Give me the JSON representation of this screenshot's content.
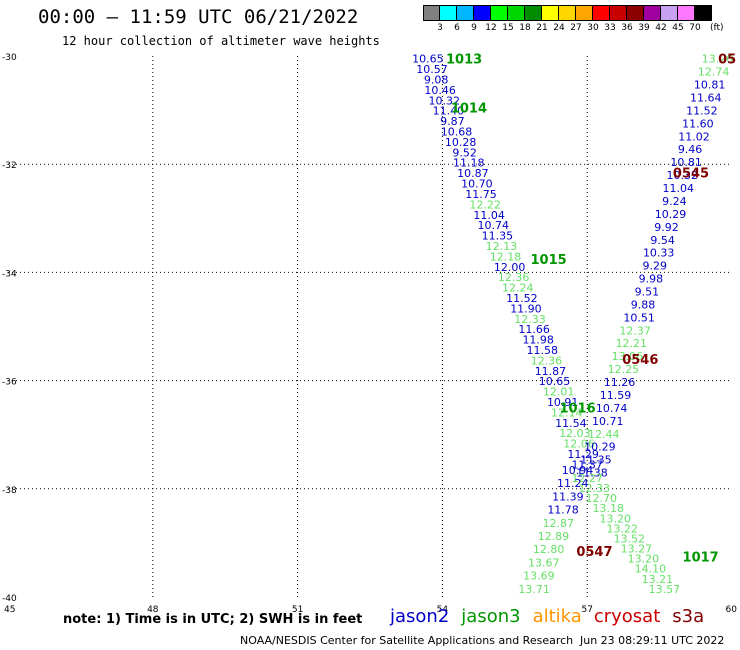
{
  "header": {
    "title": "00:00 – 11:59 UTC 06/21/2022",
    "subtitle": "12 hour collection of altimeter wave heights"
  },
  "legend": {
    "unit": "(ft)",
    "ticks": [
      "3",
      "6",
      "9",
      "12",
      "15",
      "18",
      "21",
      "24",
      "27",
      "30",
      "33",
      "36",
      "39",
      "42",
      "45",
      "70"
    ],
    "colors": [
      "#808080",
      "#00ffff",
      "#00b7ff",
      "#0000ff",
      "#00ff00",
      "#00d700",
      "#008c00",
      "#ffff00",
      "#ffd700",
      "#ffa500",
      "#ff0000",
      "#c80000",
      "#8c0000",
      "#a000a0",
      "#c8a0f0",
      "#ff78ff",
      "#000000"
    ]
  },
  "axes": {
    "lon_labels": [
      "45",
      "48",
      "51",
      "54",
      "57",
      "60"
    ],
    "lat_labels": [
      "-30",
      "-32",
      "-34",
      "-36",
      "-38",
      "-40"
    ]
  },
  "track_colors": {
    "jason2": "#0000c8",
    "jason3": "#009600",
    "light": "#66e066",
    "altika": "#ff9600",
    "cryosat": "#cc0000",
    "s3a": "#800000"
  },
  "time_labels": [
    {
      "text": "1013",
      "lon": 54.45,
      "lat": -30.05,
      "color": "#009600"
    },
    {
      "text": "1014",
      "lon": 54.55,
      "lat": -30.95,
      "color": "#009600"
    },
    {
      "text": "1015",
      "lon": 56.2,
      "lat": -33.75,
      "color": "#009600"
    },
    {
      "text": "1016",
      "lon": 56.8,
      "lat": -36.5,
      "color": "#009600"
    },
    {
      "text": "1017",
      "lon": 59.35,
      "lat": -39.25,
      "color": "#009600"
    },
    {
      "text": "05",
      "lon": 59.9,
      "lat": -30.05,
      "color": "#800000"
    },
    {
      "text": "0545",
      "lon": 59.15,
      "lat": -32.15,
      "color": "#800000"
    },
    {
      "text": "0546",
      "lon": 58.1,
      "lat": -35.6,
      "color": "#800000"
    },
    {
      "text": "0547",
      "lon": 57.15,
      "lat": -39.15,
      "color": "#800000"
    }
  ],
  "tracks": [
    {
      "name": "jason3",
      "start": [
        53.7,
        -30.05
      ],
      "end": [
        57.0,
        -37.55
      ],
      "values": [
        "10.65",
        "10.57",
        "9.08",
        "10.46",
        "10.32",
        "11.40",
        "9.87",
        "10.68",
        "10.28",
        "9.52",
        "11.18",
        "10.87",
        "10.70",
        "11.75",
        "12.22",
        "11.04",
        "10.74",
        "11.35",
        "12.13",
        "12.18",
        "12.00",
        "12.36",
        "12.24",
        "11.52",
        "11.90",
        "12.33",
        "11.66",
        "11.98",
        "11.58",
        "12.36",
        "11.87",
        "10.65",
        "12.01",
        "10.91",
        "12.14",
        "11.54",
        "12.03",
        "12.06",
        "11.29",
        "11.37"
      ],
      "colors": [
        "d",
        "d",
        "d",
        "d",
        "d",
        "d",
        "d",
        "d",
        "d",
        "d",
        "d",
        "d",
        "d",
        "d",
        "l",
        "d",
        "d",
        "d",
        "l",
        "l",
        "d",
        "l",
        "l",
        "d",
        "d",
        "l",
        "d",
        "d",
        "d",
        "l",
        "d",
        "d",
        "l",
        "d",
        "l",
        "d",
        "l",
        "l",
        "d",
        "d"
      ]
    },
    {
      "name": "s3a",
      "start": [
        59.7,
        -30.05
      ],
      "end": [
        57.1,
        -37.7
      ],
      "values": [
        "13.20",
        "12.74",
        "10.81",
        "11.64",
        "11.52",
        "11.60",
        "11.02",
        "9.46",
        "10.81",
        "10.32",
        "11.04",
        "9.24",
        "10.29",
        "9.92",
        "9.54",
        "10.33",
        "9.29",
        "9.98",
        "9.51",
        "9.88",
        "10.51",
        "12.37",
        "12.21",
        "13.06",
        "12.25",
        "11.26",
        "11.59",
        "10.74",
        "10.71",
        "12.44",
        "10.29",
        "11.35",
        "11.38"
      ],
      "colors": [
        "l",
        "l",
        "d",
        "d",
        "d",
        "d",
        "d",
        "d",
        "d",
        "d",
        "d",
        "d",
        "d",
        "d",
        "d",
        "d",
        "d",
        "d",
        "d",
        "d",
        "d",
        "l",
        "l",
        "l",
        "l",
        "d",
        "d",
        "d",
        "d",
        "l",
        "d",
        "d",
        "d"
      ]
    },
    {
      "name": "s3a-south",
      "start": [
        57.0,
        -37.8
      ],
      "end": [
        58.6,
        -39.85
      ],
      "values": [
        "12.27",
        "12.33",
        "12.70",
        "13.18",
        "13.20",
        "13.22",
        "13.52",
        "13.27",
        "13.20",
        "14.10",
        "13.21",
        "13.57"
      ],
      "colors": [
        "l",
        "l",
        "l",
        "l",
        "l",
        "l",
        "l",
        "l",
        "l",
        "l",
        "l",
        "l"
      ]
    },
    {
      "name": "jason3-south",
      "start": [
        56.8,
        -37.65
      ],
      "end": [
        55.9,
        -39.85
      ],
      "values": [
        "10.94",
        "11.24",
        "11.39",
        "11.78",
        "12.87",
        "12.89",
        "12.80",
        "13.67",
        "13.69",
        "13.71"
      ],
      "colors": [
        "d",
        "d",
        "d",
        "d",
        "l",
        "l",
        "l",
        "l",
        "l",
        "l"
      ]
    }
  ],
  "footer": {
    "note": "note: 1) Time is in UTC; 2) SWH is in feet",
    "satellites": [
      {
        "label": "jason2",
        "color": "#0000c8"
      },
      {
        "label": "jason3",
        "color": "#009600"
      },
      {
        "label": "altika",
        "color": "#ff9600"
      },
      {
        "label": "cryosat",
        "color": "#cc0000"
      },
      {
        "label": "s3a",
        "color": "#800000"
      }
    ],
    "credit": "NOAA/NESDIS Center for Satellite Applications and Research",
    "timestamp": "Jun 23 08:29:11 UTC 2022"
  }
}
